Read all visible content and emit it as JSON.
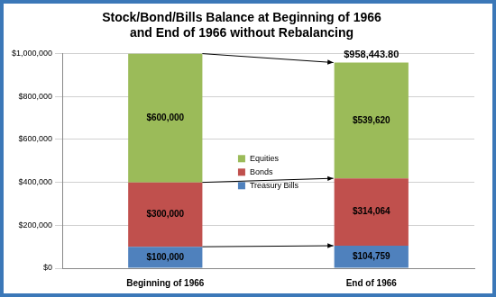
{
  "chart_data": {
    "type": "bar",
    "title": "Stock/Bond/Bills Balance at Beginning of 1966\nand End of 1966 without Rebalancing",
    "categories": [
      "Beginning of 1966",
      "End of 1966"
    ],
    "stacked": true,
    "data_labels": true,
    "grid": true,
    "legend": "center",
    "series": [
      {
        "name": "Treasury Bills",
        "color": "#4f81bd",
        "values": [
          100000,
          104759
        ],
        "value_labels": [
          "$100,000",
          "$104,759"
        ]
      },
      {
        "name": "Bonds",
        "color": "#c0504d",
        "values": [
          300000,
          314064
        ],
        "value_labels": [
          "$300,000",
          "$314,064"
        ]
      },
      {
        "name": "Equities",
        "color": "#9bbb59",
        "values": [
          600000,
          539620
        ],
        "value_labels": [
          "$600,000",
          "$539,620"
        ]
      }
    ],
    "ylim": [
      0,
      1000000
    ],
    "yticks": [
      {
        "value": 0,
        "label": "$0"
      },
      {
        "value": 200000,
        "label": "$200,000"
      },
      {
        "value": 400000,
        "label": "$400,000"
      },
      {
        "value": 600000,
        "label": "$600,000"
      },
      {
        "value": 800000,
        "label": "$800,000"
      },
      {
        "value": 1000000,
        "label": "$1,000,000"
      }
    ],
    "annotations": [
      {
        "text": "$958,443.80",
        "category": "End of 1966",
        "value": 958443.8
      }
    ]
  }
}
